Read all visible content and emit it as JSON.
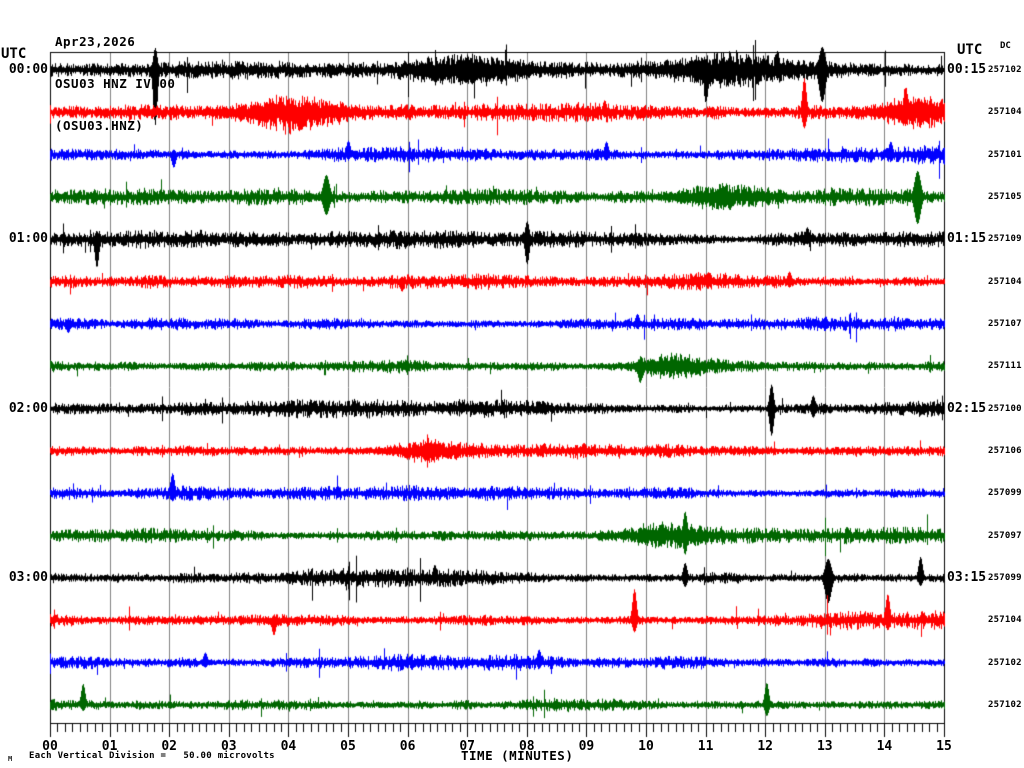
{
  "header": {
    "date": "Apr23,2026",
    "station": "OSU03 HNZ IV 00",
    "channel": "(OSU03.HNZ)"
  },
  "left_axis_unit": "UTC",
  "right_axis_unit": "UTC",
  "dc_header": "DC",
  "x_axis": {
    "title": "TIME (MINUTES)",
    "ticks": [
      "00",
      "01",
      "02",
      "03",
      "04",
      "05",
      "06",
      "07",
      "08",
      "09",
      "10",
      "11",
      "12",
      "13",
      "14",
      "15"
    ]
  },
  "footer": {
    "logo_mark": "M",
    "scale_note": "Each Vertical Division =   50.00 microvolts"
  },
  "chart_data": {
    "type": "line",
    "subtype": "seismogram-helicorder",
    "title": "OSU03 HNZ IV 00 (OSU03.HNZ) Apr23,2026",
    "xlabel": "TIME (MINUTES)",
    "x_range_minutes": [
      0,
      15
    ],
    "x_major_tick_every_min": 1,
    "x_minor_divisions_per_min": 8,
    "minutes_per_row": 15,
    "vertical_division_microvolts": 50.0,
    "grid": true,
    "colors": {
      "grid": "#808080",
      "border": "#000000",
      "black": "#000000",
      "red": "#ff0000",
      "blue": "#0000ff",
      "green": "#006600"
    },
    "rows": [
      {
        "color": "black",
        "left_label": "00:00",
        "right_label": "00:15",
        "dc": "257102",
        "amp": 5.0,
        "events": [
          {
            "m": 1.76,
            "u": 22,
            "d": 55,
            "w": 2
          },
          {
            "m": 7.05,
            "u": 10,
            "d": 10,
            "w": 6
          },
          {
            "m": 11.0,
            "u": 8,
            "d": 26,
            "w": 2
          },
          {
            "m": 11.45,
            "u": 12,
            "d": 12,
            "w": 6
          },
          {
            "m": 12.2,
            "u": 19,
            "d": 6,
            "w": 2
          },
          {
            "m": 12.95,
            "u": 23,
            "d": 32,
            "w": 3
          }
        ]
      },
      {
        "color": "red",
        "left_label": "",
        "right_label": "",
        "dc": "257104",
        "amp": 5.0,
        "events": [
          {
            "m": 4.05,
            "u": 15,
            "d": 18,
            "w": 6
          },
          {
            "m": 9.3,
            "u": 12,
            "d": 5,
            "w": 2
          },
          {
            "m": 12.65,
            "u": 34,
            "d": 16,
            "w": 2
          },
          {
            "m": 14.35,
            "u": 20,
            "d": 6,
            "w": 2
          },
          {
            "m": 14.6,
            "u": 10,
            "d": 10,
            "w": 5
          }
        ]
      },
      {
        "color": "blue",
        "left_label": "",
        "right_label": "",
        "dc": "257101",
        "amp": 5.2,
        "events": [
          {
            "m": 2.07,
            "u": 5,
            "d": 13,
            "w": 2
          },
          {
            "m": 5.0,
            "u": 14,
            "d": 5,
            "w": 2
          },
          {
            "m": 9.33,
            "u": 13,
            "d": 6,
            "w": 2
          },
          {
            "m": 14.1,
            "u": 13,
            "d": 5,
            "w": 2
          }
        ]
      },
      {
        "color": "green",
        "left_label": "",
        "right_label": "",
        "dc": "257105",
        "amp": 4.8,
        "events": [
          {
            "m": 4.63,
            "u": 22,
            "d": 18,
            "w": 3
          },
          {
            "m": 11.2,
            "u": 9,
            "d": 9,
            "w": 5
          },
          {
            "m": 14.55,
            "u": 26,
            "d": 27,
            "w": 3
          }
        ]
      },
      {
        "color": "black",
        "left_label": "01:00",
        "right_label": "01:15",
        "dc": "257109",
        "amp": 4.8,
        "events": [
          {
            "m": 0.78,
            "u": 8,
            "d": 28,
            "w": 2
          },
          {
            "m": 8.0,
            "u": 18,
            "d": 25,
            "w": 2
          },
          {
            "m": 12.7,
            "u": 12,
            "d": 5,
            "w": 2
          }
        ]
      },
      {
        "color": "red",
        "left_label": "",
        "right_label": "",
        "dc": "257104",
        "amp": 4.8,
        "events": [
          {
            "m": 5.9,
            "u": 5,
            "d": 10,
            "w": 2
          },
          {
            "m": 12.4,
            "u": 10,
            "d": 6,
            "w": 2
          }
        ]
      },
      {
        "color": "blue",
        "left_label": "",
        "right_label": "",
        "dc": "257107",
        "amp": 4.6,
        "events": [
          {
            "m": 0.3,
            "u": 5,
            "d": 9,
            "w": 2
          },
          {
            "m": 9.85,
            "u": 10,
            "d": 5,
            "w": 2
          }
        ]
      },
      {
        "color": "green",
        "left_label": "",
        "right_label": "",
        "dc": "257111",
        "amp": 4.6,
        "events": [
          {
            "m": 9.9,
            "u": 6,
            "d": 13,
            "w": 2
          },
          {
            "m": 10.35,
            "u": 9,
            "d": 9,
            "w": 4
          }
        ]
      },
      {
        "color": "black",
        "left_label": "02:00",
        "right_label": "02:15",
        "dc": "257100",
        "amp": 4.8,
        "events": [
          {
            "m": 12.1,
            "u": 24,
            "d": 27,
            "w": 2
          },
          {
            "m": 12.8,
            "u": 13,
            "d": 9,
            "w": 2
          }
        ]
      },
      {
        "color": "red",
        "left_label": "",
        "right_label": "",
        "dc": "257106",
        "amp": 4.8,
        "events": [
          {
            "m": 6.3,
            "u": 8,
            "d": 8,
            "w": 4
          }
        ]
      },
      {
        "color": "blue",
        "left_label": "",
        "right_label": "",
        "dc": "257099",
        "amp": 4.6,
        "events": [
          {
            "m": 2.05,
            "u": 20,
            "d": 8,
            "w": 2
          }
        ]
      },
      {
        "color": "green",
        "left_label": "",
        "right_label": "",
        "dc": "257097",
        "amp": 4.6,
        "events": [
          {
            "m": 10.3,
            "u": 9,
            "d": 9,
            "w": 4
          },
          {
            "m": 10.65,
            "u": 24,
            "d": 19,
            "w": 2
          }
        ]
      },
      {
        "color": "black",
        "left_label": "03:00",
        "right_label": "03:15",
        "dc": "257099",
        "amp": 4.8,
        "events": [
          {
            "m": 6.45,
            "u": 13,
            "d": 6,
            "w": 2
          },
          {
            "m": 10.65,
            "u": 15,
            "d": 9,
            "w": 2
          },
          {
            "m": 13.05,
            "u": 19,
            "d": 25,
            "w": 3
          },
          {
            "m": 14.6,
            "u": 21,
            "d": 8,
            "w": 2
          }
        ]
      },
      {
        "color": "red",
        "left_label": "",
        "right_label": "",
        "dc": "257104",
        "amp": 4.8,
        "events": [
          {
            "m": 3.75,
            "u": 5,
            "d": 15,
            "w": 2
          },
          {
            "m": 9.8,
            "u": 31,
            "d": 12,
            "w": 2
          },
          {
            "m": 14.05,
            "u": 26,
            "d": 10,
            "w": 2
          }
        ]
      },
      {
        "color": "blue",
        "left_label": "",
        "right_label": "",
        "dc": "257102",
        "amp": 4.6,
        "events": [
          {
            "m": 2.6,
            "u": 10,
            "d": 5,
            "w": 2
          },
          {
            "m": 8.2,
            "u": 13,
            "d": 6,
            "w": 2
          }
        ]
      },
      {
        "color": "green",
        "left_label": "",
        "right_label": "",
        "dc": "257102",
        "amp": 4.6,
        "events": [
          {
            "m": 0.55,
            "u": 21,
            "d": 6,
            "w": 2
          },
          {
            "m": 12.02,
            "u": 22,
            "d": 11,
            "w": 2
          }
        ]
      }
    ]
  }
}
